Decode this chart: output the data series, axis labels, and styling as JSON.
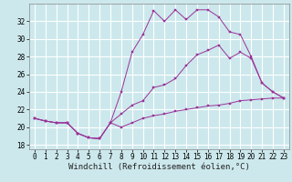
{
  "xlabel": "Windchill (Refroidissement éolien,°C)",
  "line_color": "#993399",
  "background_color": "#cce8ec",
  "grid_color": "#ffffff",
  "x_ticks": [
    0,
    1,
    2,
    3,
    4,
    5,
    6,
    7,
    8,
    9,
    10,
    11,
    12,
    13,
    14,
    15,
    16,
    17,
    18,
    19,
    20,
    21,
    22,
    23
  ],
  "y_ticks": [
    18,
    20,
    22,
    24,
    26,
    28,
    30,
    32
  ],
  "ylim": [
    17.5,
    34.0
  ],
  "xlim": [
    -0.5,
    23.5
  ],
  "line1_y": [
    21.0,
    20.7,
    20.5,
    20.5,
    19.3,
    18.8,
    18.7,
    20.5,
    20.0,
    20.5,
    21.0,
    21.3,
    21.5,
    21.8,
    22.0,
    22.2,
    22.4,
    22.5,
    22.7,
    23.0,
    23.1,
    23.2,
    23.3,
    23.3
  ],
  "line2_y": [
    21.0,
    20.7,
    20.5,
    20.5,
    19.3,
    18.8,
    18.7,
    20.5,
    24.0,
    28.5,
    30.5,
    33.2,
    32.0,
    33.3,
    32.2,
    33.3,
    33.3,
    32.5,
    30.8,
    30.5,
    28.0,
    25.0,
    24.0,
    23.3
  ],
  "line3_y": [
    21.0,
    20.7,
    20.5,
    20.5,
    19.3,
    18.8,
    18.7,
    20.5,
    21.5,
    22.5,
    23.0,
    24.5,
    24.8,
    25.5,
    27.0,
    28.2,
    28.7,
    29.3,
    27.8,
    28.5,
    27.8,
    25.0,
    24.0,
    23.3
  ],
  "tick_fontsize": 5.5,
  "xlabel_fontsize": 6.5,
  "marker_size": 2.0
}
